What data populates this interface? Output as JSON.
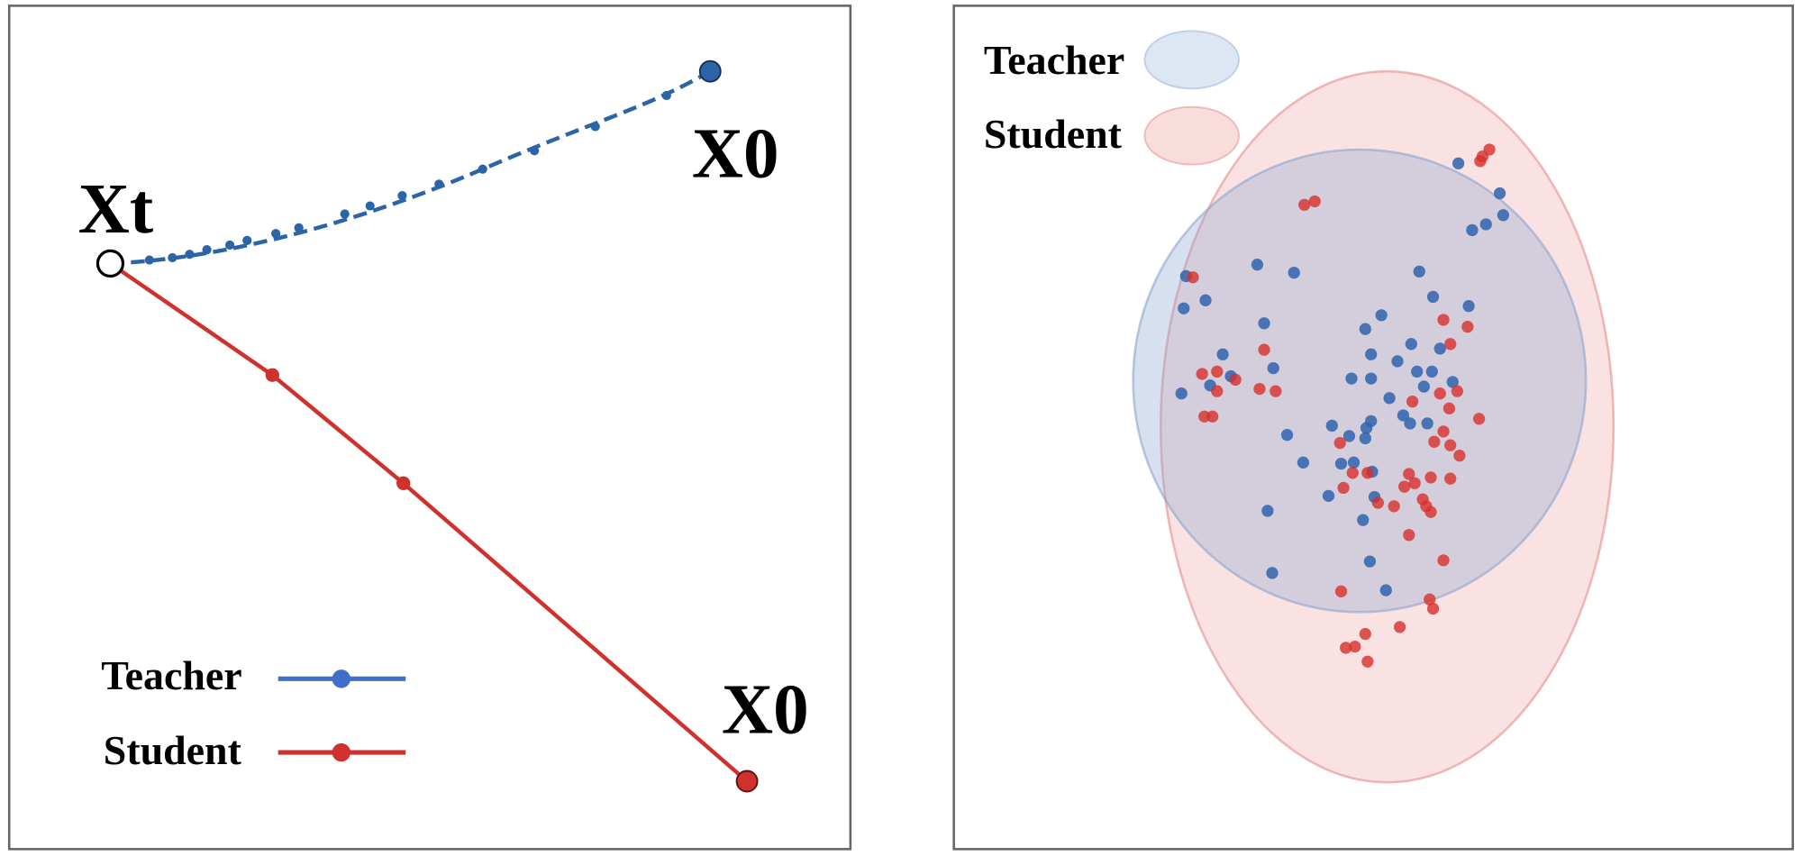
{
  "left_panel": {
    "start_label": "Xt",
    "teacher_end_label": "X0",
    "student_end_label": "X0",
    "legend": [
      "Teacher",
      "Student"
    ]
  },
  "right_panel": {
    "legend": [
      "Teacher",
      "Student"
    ]
  }
}
